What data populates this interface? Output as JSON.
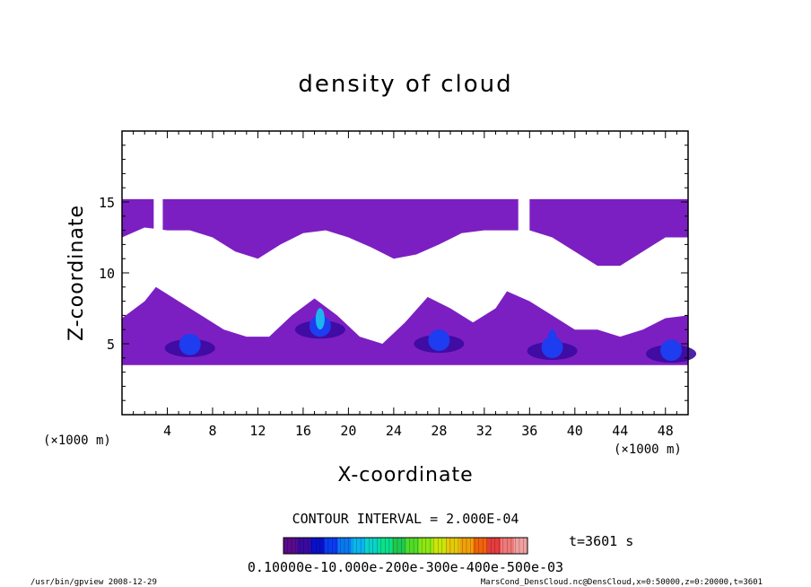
{
  "chart_data": {
    "type": "contour",
    "title": "density of cloud",
    "xlabel": "X-coordinate",
    "ylabel": "Z-coordinate",
    "x_unit": "(×1000 m)",
    "y_unit": "(×1000 m)",
    "xlim": [
      0,
      50
    ],
    "ylim": [
      0,
      20
    ],
    "x_ticks": [
      4,
      8,
      12,
      16,
      20,
      24,
      28,
      32,
      36,
      40,
      44,
      48
    ],
    "y_ticks": [
      5,
      10,
      15
    ],
    "contour_interval_label": "CONTOUR INTERVAL = 2.000E-04",
    "time_label": "t=3601 s",
    "colorbar_label": "0.10000e-10.000e-200e-300e-400e-500e-03",
    "colorbar_colors": [
      "#5a0a8c",
      "#3a0aa0",
      "#0a10c8",
      "#0a3cf0",
      "#0a78f0",
      "#0ab4f0",
      "#0ad2c8",
      "#0ae08c",
      "#1ec850",
      "#50dc28",
      "#8ce614",
      "#c8e60a",
      "#e6c80a",
      "#f0a00a",
      "#f0640a",
      "#e63c3c",
      "#f07878",
      "#f0a0a0"
    ],
    "field_colors": {
      "low": "#7b1fc2",
      "mid": "#3a0aa0",
      "high": "#1e3cf0",
      "peak": "#1eb4f0"
    },
    "cloud_layers": [
      {
        "name": "upper",
        "z_range": [
          10.5,
          15.2
        ]
      },
      {
        "name": "lower",
        "z_range": [
          3.5,
          9.0
        ]
      }
    ],
    "upper_profile": [
      {
        "x": 0,
        "bottom": 12.5
      },
      {
        "x": 2,
        "bottom": 13.2
      },
      {
        "x": 4,
        "bottom": 13.0
      },
      {
        "x": 6,
        "bottom": 13.0
      },
      {
        "x": 8,
        "bottom": 12.5
      },
      {
        "x": 10,
        "bottom": 11.5
      },
      {
        "x": 12,
        "bottom": 11.0
      },
      {
        "x": 14,
        "bottom": 12.0
      },
      {
        "x": 16,
        "bottom": 12.8
      },
      {
        "x": 18,
        "bottom": 13.0
      },
      {
        "x": 20,
        "bottom": 12.5
      },
      {
        "x": 22,
        "bottom": 11.8
      },
      {
        "x": 24,
        "bottom": 11.0
      },
      {
        "x": 26,
        "bottom": 11.3
      },
      {
        "x": 28,
        "bottom": 12.0
      },
      {
        "x": 30,
        "bottom": 12.8
      },
      {
        "x": 32,
        "bottom": 13.0
      },
      {
        "x": 34,
        "bottom": 13.0
      },
      {
        "x": 36,
        "bottom": 13.0
      },
      {
        "x": 38,
        "bottom": 12.5
      },
      {
        "x": 40,
        "bottom": 11.5
      },
      {
        "x": 42,
        "bottom": 10.5
      },
      {
        "x": 44,
        "bottom": 10.5
      },
      {
        "x": 46,
        "bottom": 11.5
      },
      {
        "x": 48,
        "bottom": 12.5
      },
      {
        "x": 50,
        "bottom": 12.5
      }
    ],
    "lower_profile": [
      {
        "x": 0,
        "top": 6.8
      },
      {
        "x": 2,
        "top": 8.0
      },
      {
        "x": 3,
        "top": 9.0
      },
      {
        "x": 5,
        "top": 8.0
      },
      {
        "x": 7,
        "top": 7.0
      },
      {
        "x": 9,
        "top": 6.0
      },
      {
        "x": 11,
        "top": 5.5
      },
      {
        "x": 13,
        "top": 5.5
      },
      {
        "x": 15,
        "top": 7.0
      },
      {
        "x": 17,
        "top": 8.2
      },
      {
        "x": 19,
        "top": 7.0
      },
      {
        "x": 21,
        "top": 5.5
      },
      {
        "x": 23,
        "top": 5.0
      },
      {
        "x": 25,
        "top": 6.5
      },
      {
        "x": 27,
        "top": 8.3
      },
      {
        "x": 29,
        "top": 7.5
      },
      {
        "x": 31,
        "top": 6.5
      },
      {
        "x": 33,
        "top": 7.5
      },
      {
        "x": 34,
        "top": 8.7
      },
      {
        "x": 36,
        "top": 8.0
      },
      {
        "x": 38,
        "top": 7.0
      },
      {
        "x": 40,
        "top": 6.0
      },
      {
        "x": 42,
        "top": 6.0
      },
      {
        "x": 44,
        "top": 5.5
      },
      {
        "x": 46,
        "top": 6.0
      },
      {
        "x": 48,
        "top": 6.8
      },
      {
        "x": 50,
        "top": 7.0
      }
    ],
    "dense_cores": [
      {
        "x": 6.0,
        "z": 5.2,
        "level": "mid"
      },
      {
        "x": 17.5,
        "z": 6.5,
        "level": "peak"
      },
      {
        "x": 28.0,
        "z": 5.5,
        "level": "mid"
      },
      {
        "x": 38.0,
        "z": 5.0,
        "level": "high"
      },
      {
        "x": 48.5,
        "z": 4.8,
        "level": "mid"
      }
    ]
  },
  "footer": {
    "program_info": "/usr/bin/gpview   2008-12-29",
    "file_info": "MarsCond_DensCloud.nc@DensCloud,x=0:50000,z=0:20000,t=3601"
  }
}
